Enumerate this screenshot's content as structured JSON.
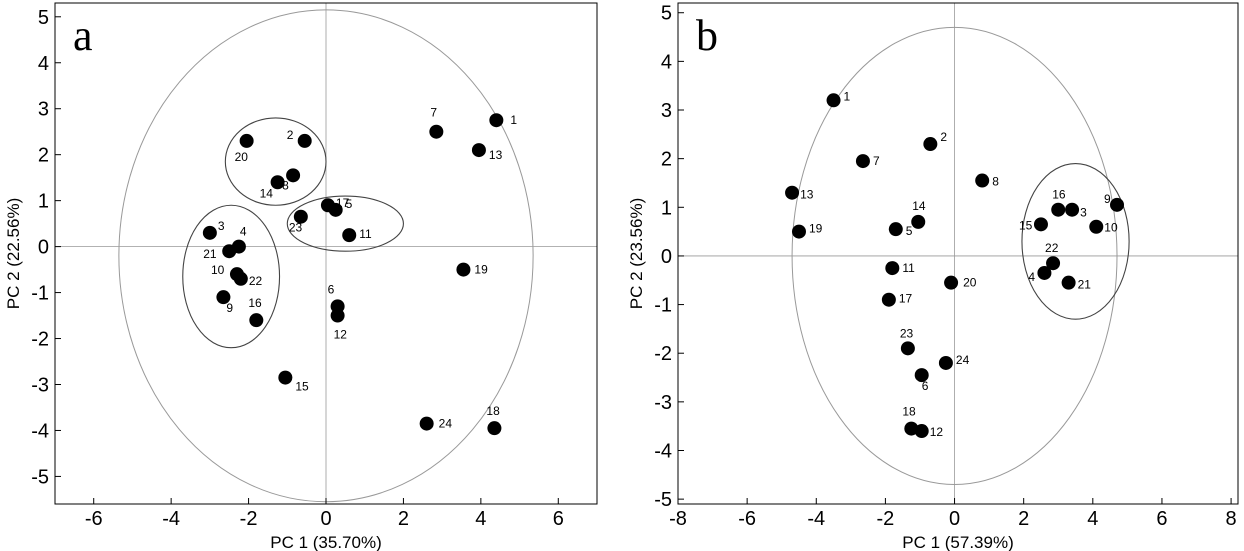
{
  "chart_data": [
    {
      "type": "scatter",
      "panel_label": "a",
      "xlabel": "PC 1 (35.70%)",
      "ylabel": "PC 2 (22.56%)",
      "xlim": [
        -7,
        7
      ],
      "ylim": [
        -5.6,
        5.3
      ],
      "xticks": [
        -6,
        -4,
        -2,
        0,
        2,
        4,
        6
      ],
      "yticks": [
        5,
        4,
        3,
        2,
        1,
        0,
        -1,
        -2,
        -3,
        -4,
        -5
      ],
      "grid": false,
      "points": [
        {
          "label": "1",
          "x": 4.4,
          "y": 2.75
        },
        {
          "label": "2",
          "x": -0.55,
          "y": 2.3
        },
        {
          "label": "3",
          "x": -3.0,
          "y": 0.3
        },
        {
          "label": "4",
          "x": -2.25,
          "y": 0.0
        },
        {
          "label": "5",
          "x": 0.25,
          "y": 0.8
        },
        {
          "label": "6",
          "x": 0.3,
          "y": -1.3
        },
        {
          "label": "7",
          "x": 2.85,
          "y": 2.5
        },
        {
          "label": "8",
          "x": -0.85,
          "y": 1.55
        },
        {
          "label": "9",
          "x": -2.65,
          "y": -1.1
        },
        {
          "label": "10",
          "x": -2.3,
          "y": -0.6
        },
        {
          "label": "11",
          "x": 0.6,
          "y": 0.25
        },
        {
          "label": "12",
          "x": 0.3,
          "y": -1.5
        },
        {
          "label": "13",
          "x": 3.95,
          "y": 2.1
        },
        {
          "label": "14",
          "x": -1.25,
          "y": 1.4
        },
        {
          "label": "15",
          "x": -1.05,
          "y": -2.85
        },
        {
          "label": "16",
          "x": -1.8,
          "y": -1.6
        },
        {
          "label": "17",
          "x": 0.05,
          "y": 0.9
        },
        {
          "label": "18",
          "x": 4.35,
          "y": -3.95
        },
        {
          "label": "19",
          "x": 3.55,
          "y": -0.5
        },
        {
          "label": "20",
          "x": -2.05,
          "y": 2.3
        },
        {
          "label": "21",
          "x": -2.5,
          "y": -0.1
        },
        {
          "label": "22",
          "x": -2.2,
          "y": -0.7
        },
        {
          "label": "23",
          "x": -0.65,
          "y": 0.65
        },
        {
          "label": "24",
          "x": 2.6,
          "y": -3.85
        }
      ]
    },
    {
      "type": "scatter",
      "panel_label": "b",
      "xlabel": "PC 1 (57.39%)",
      "ylabel": "PC 2 (23.56%)",
      "xlim": [
        -8,
        8.2
      ],
      "ylim": [
        -5.1,
        5.2
      ],
      "xticks": [
        -8,
        -6,
        -4,
        -2,
        0,
        2,
        4,
        6,
        8
      ],
      "yticks": [
        5,
        4,
        3,
        2,
        1,
        0,
        -1,
        -2,
        -3,
        -4,
        -5
      ],
      "grid": false,
      "points": [
        {
          "label": "1",
          "x": -3.5,
          "y": 3.2
        },
        {
          "label": "2",
          "x": -0.7,
          "y": 2.3
        },
        {
          "label": "3",
          "x": 3.4,
          "y": 0.95
        },
        {
          "label": "4",
          "x": 2.6,
          "y": -0.35
        },
        {
          "label": "5",
          "x": -1.7,
          "y": 0.55
        },
        {
          "label": "6",
          "x": -0.95,
          "y": -2.45
        },
        {
          "label": "7",
          "x": -2.65,
          "y": 1.95
        },
        {
          "label": "8",
          "x": 0.8,
          "y": 1.55
        },
        {
          "label": "9",
          "x": 4.7,
          "y": 1.05
        },
        {
          "label": "10",
          "x": 4.1,
          "y": 0.6
        },
        {
          "label": "11",
          "x": -1.8,
          "y": -0.25
        },
        {
          "label": "12",
          "x": -0.95,
          "y": -3.6
        },
        {
          "label": "13",
          "x": -4.7,
          "y": 1.3
        },
        {
          "label": "14",
          "x": -1.05,
          "y": 0.7
        },
        {
          "label": "15",
          "x": 2.5,
          "y": 0.65
        },
        {
          "label": "16",
          "x": 3.0,
          "y": 0.95
        },
        {
          "label": "17",
          "x": -1.9,
          "y": -0.9
        },
        {
          "label": "18",
          "x": -1.25,
          "y": -3.55
        },
        {
          "label": "19",
          "x": -4.5,
          "y": 0.5
        },
        {
          "label": "20",
          "x": -0.1,
          "y": -0.55
        },
        {
          "label": "21",
          "x": 3.3,
          "y": -0.55
        },
        {
          "label": "22",
          "x": 2.85,
          "y": -0.15
        },
        {
          "label": "23",
          "x": -1.35,
          "y": -1.9
        },
        {
          "label": "24",
          "x": -0.25,
          "y": -2.2
        }
      ]
    }
  ]
}
